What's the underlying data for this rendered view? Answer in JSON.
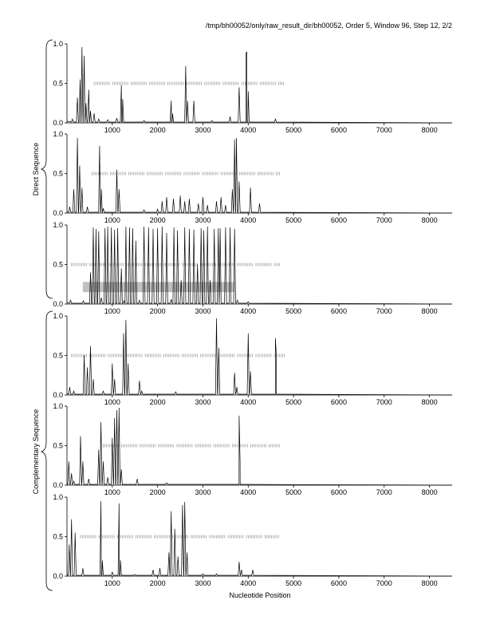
{
  "header": {
    "title": "/tmp/bh00052/only/raw_result_dir/bh00052, Order 5, Window 96, Step 12, 2/2"
  },
  "group_labels": {
    "direct": "Direct Sequence",
    "complementary": "Complementary Sequence"
  },
  "xlabel": "Nucleotide Position",
  "chart_data": {
    "type": "line",
    "title": "/tmp/bh00052/only/raw_result_dir/bh00052, Order 5, Window 96, Step 12, 2/2",
    "xlabel": "Nucleotide Position",
    "xlim": [
      0,
      8500
    ],
    "ylim": [
      0,
      1.0
    ],
    "xticks": [
      1000,
      2000,
      3000,
      4000,
      5000,
      6000,
      7000,
      8000
    ],
    "yticks": [
      0.0,
      0.5,
      1.0
    ],
    "ytick_labels": [
      "0.0",
      "0.5",
      "1.0"
    ],
    "grid": false,
    "panels": [
      {
        "group": "Direct Sequence",
        "peaks": [
          [
            120,
            0.05
          ],
          [
            230,
            0.32
          ],
          [
            290,
            0.55
          ],
          [
            330,
            0.96
          ],
          [
            380,
            0.85
          ],
          [
            420,
            0.25
          ],
          [
            480,
            0.42
          ],
          [
            520,
            0.15
          ],
          [
            600,
            0.12
          ],
          [
            700,
            0.05
          ],
          [
            900,
            0.04
          ],
          [
            1100,
            0.06
          ],
          [
            1200,
            0.48
          ],
          [
            1230,
            0.3
          ],
          [
            1700,
            0.03
          ],
          [
            2300,
            0.28
          ],
          [
            2330,
            0.12
          ],
          [
            2620,
            0.72
          ],
          [
            2660,
            0.28
          ],
          [
            2800,
            0.28
          ],
          [
            3200,
            0.03
          ],
          [
            3600,
            0.08
          ],
          [
            3800,
            0.45
          ],
          [
            3950,
            0.88
          ],
          [
            3970,
            0.9
          ],
          [
            4000,
            0.4
          ],
          [
            4600,
            0.05
          ]
        ],
        "tick_range": [
          600,
          4800
        ],
        "band": null
      },
      {
        "group": "Direct Sequence",
        "peaks": [
          [
            60,
            0.08
          ],
          [
            150,
            0.3
          ],
          [
            230,
            0.95
          ],
          [
            280,
            0.6
          ],
          [
            330,
            0.32
          ],
          [
            450,
            0.08
          ],
          [
            720,
            0.85
          ],
          [
            760,
            0.3
          ],
          [
            800,
            0.06
          ],
          [
            1100,
            0.55
          ],
          [
            1150,
            0.3
          ],
          [
            1700,
            0.04
          ],
          [
            2000,
            0.05
          ],
          [
            2100,
            0.15
          ],
          [
            2200,
            0.2
          ],
          [
            2350,
            0.18
          ],
          [
            2500,
            0.22
          ],
          [
            2600,
            0.15
          ],
          [
            2700,
            0.18
          ],
          [
            2900,
            0.12
          ],
          [
            3000,
            0.2
          ],
          [
            3100,
            0.1
          ],
          [
            3300,
            0.15
          ],
          [
            3400,
            0.2
          ],
          [
            3500,
            0.1
          ],
          [
            3650,
            0.3
          ],
          [
            3700,
            0.93
          ],
          [
            3740,
            0.95
          ],
          [
            3800,
            0.4
          ],
          [
            4050,
            0.32
          ],
          [
            4250,
            0.12
          ]
        ],
        "tick_range": [
          550,
          4700
        ],
        "band": null
      },
      {
        "group": "Direct Sequence",
        "peaks": [
          [
            80,
            0.05
          ],
          [
            360,
            0.04
          ],
          [
            520,
            0.4
          ],
          [
            580,
            0.97
          ],
          [
            640,
            0.95
          ],
          [
            700,
            0.92
          ],
          [
            760,
            0.08
          ],
          [
            840,
            0.96
          ],
          [
            900,
            0.98
          ],
          [
            980,
            0.97
          ],
          [
            1050,
            0.94
          ],
          [
            1120,
            0.96
          ],
          [
            1200,
            0.45
          ],
          [
            1260,
            0.04
          ],
          [
            1300,
            0.98
          ],
          [
            1380,
            0.97
          ],
          [
            1450,
            0.96
          ],
          [
            1520,
            0.8
          ],
          [
            1600,
            0.05
          ],
          [
            1700,
            0.98
          ],
          [
            1800,
            0.97
          ],
          [
            1900,
            0.95
          ],
          [
            2000,
            0.96
          ],
          [
            2100,
            0.98
          ],
          [
            2200,
            0.9
          ],
          [
            2300,
            0.06
          ],
          [
            2360,
            0.97
          ],
          [
            2440,
            0.93
          ],
          [
            2520,
            0.3
          ],
          [
            2600,
            0.97
          ],
          [
            2700,
            0.95
          ],
          [
            2800,
            0.94
          ],
          [
            2880,
            0.5
          ],
          [
            2960,
            0.96
          ],
          [
            3020,
            0.93
          ],
          [
            3100,
            0.98
          ],
          [
            3160,
            0.3
          ],
          [
            3250,
            0.95
          ],
          [
            3340,
            0.96
          ],
          [
            3380,
            0.96
          ],
          [
            3500,
            0.97
          ],
          [
            3600,
            0.97
          ],
          [
            3700,
            0.95
          ],
          [
            3760,
            0.05
          ],
          [
            4000,
            0.03
          ]
        ],
        "tick_range": [
          100,
          4700
        ],
        "band": [
          350,
          3700
        ]
      },
      {
        "group": "Complementary Sequence",
        "peaks": [
          [
            60,
            0.1
          ],
          [
            150,
            0.05
          ],
          [
            380,
            0.5
          ],
          [
            450,
            0.35
          ],
          [
            520,
            0.62
          ],
          [
            580,
            0.2
          ],
          [
            800,
            0.05
          ],
          [
            1000,
            0.4
          ],
          [
            1050,
            0.2
          ],
          [
            1250,
            0.78
          ],
          [
            1300,
            0.95
          ],
          [
            1350,
            0.4
          ],
          [
            1600,
            0.18
          ],
          [
            1650,
            0.05
          ],
          [
            2400,
            0.04
          ],
          [
            3300,
            0.97
          ],
          [
            3350,
            0.6
          ],
          [
            3700,
            0.28
          ],
          [
            3750,
            0.1
          ],
          [
            4000,
            0.78
          ],
          [
            4050,
            0.3
          ],
          [
            4600,
            0.72
          ],
          [
            4620,
            0.5
          ]
        ],
        "tick_range": [
          100,
          4800
        ],
        "band": null
      },
      {
        "group": "Complementary Sequence",
        "peaks": [
          [
            40,
            0.3
          ],
          [
            100,
            0.15
          ],
          [
            150,
            0.05
          ],
          [
            300,
            0.62
          ],
          [
            350,
            0.3
          ],
          [
            480,
            0.08
          ],
          [
            700,
            0.45
          ],
          [
            750,
            0.8
          ],
          [
            800,
            0.3
          ],
          [
            900,
            0.1
          ],
          [
            1000,
            0.6
          ],
          [
            1050,
            0.85
          ],
          [
            1100,
            0.95
          ],
          [
            1150,
            0.98
          ],
          [
            1200,
            0.2
          ],
          [
            1550,
            0.08
          ],
          [
            2200,
            0.03
          ],
          [
            3800,
            0.88
          ],
          [
            3820,
            0.3
          ]
        ],
        "tick_range": [
          800,
          4700
        ],
        "band": null
      },
      {
        "group": "Complementary Sequence",
        "peaks": [
          [
            50,
            0.4
          ],
          [
            100,
            0.72
          ],
          [
            180,
            0.55
          ],
          [
            350,
            0.1
          ],
          [
            750,
            0.95
          ],
          [
            780,
            0.2
          ],
          [
            1000,
            0.05
          ],
          [
            1150,
            0.92
          ],
          [
            1180,
            0.2
          ],
          [
            1500,
            0.02
          ],
          [
            1900,
            0.08
          ],
          [
            2050,
            0.1
          ],
          [
            2250,
            0.3
          ],
          [
            2300,
            0.82
          ],
          [
            2380,
            0.6
          ],
          [
            2450,
            0.25
          ],
          [
            2550,
            0.9
          ],
          [
            2600,
            0.94
          ],
          [
            2650,
            0.3
          ],
          [
            3000,
            0.03
          ],
          [
            3300,
            0.03
          ],
          [
            3800,
            0.18
          ],
          [
            3850,
            0.08
          ],
          [
            4100,
            0.08
          ]
        ],
        "tick_range": [
          300,
          4700
        ],
        "band": null
      }
    ]
  }
}
